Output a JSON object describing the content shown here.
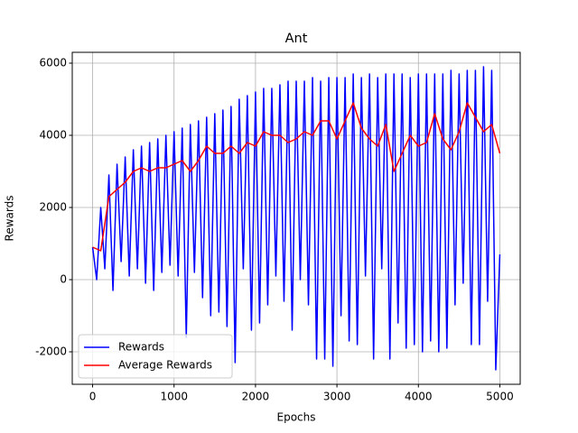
{
  "chart_data": {
    "type": "line",
    "title": "Ant",
    "x_label": "Epochs",
    "y_label": "Rewards",
    "xlim": [
      -250,
      5250
    ],
    "ylim": [
      -2900,
      6300
    ],
    "xticks": [
      0,
      1000,
      2000,
      3000,
      4000,
      5000
    ],
    "yticks": [
      -2000,
      0,
      2000,
      4000,
      6000
    ],
    "grid": true,
    "legend": "lower left",
    "series": [
      {
        "name": "Rewards",
        "color": "#0000ff",
        "x": [
          0,
          50,
          100,
          150,
          200,
          250,
          300,
          350,
          400,
          450,
          500,
          550,
          600,
          650,
          700,
          750,
          800,
          850,
          900,
          950,
          1000,
          1050,
          1100,
          1150,
          1200,
          1250,
          1300,
          1350,
          1400,
          1450,
          1500,
          1550,
          1600,
          1650,
          1700,
          1750,
          1800,
          1850,
          1900,
          1950,
          2000,
          2050,
          2100,
          2150,
          2200,
          2250,
          2300,
          2350,
          2400,
          2450,
          2500,
          2550,
          2600,
          2650,
          2700,
          2750,
          2800,
          2850,
          2900,
          2950,
          3000,
          3050,
          3100,
          3150,
          3200,
          3250,
          3300,
          3350,
          3400,
          3450,
          3500,
          3550,
          3600,
          3650,
          3700,
          3750,
          3800,
          3850,
          3900,
          3950,
          4000,
          4050,
          4100,
          4150,
          4200,
          4250,
          4300,
          4350,
          4400,
          4450,
          4500,
          4550,
          4600,
          4650,
          4700,
          4750,
          4800,
          4850,
          4900,
          4950,
          5000
        ],
        "values": [
          900,
          0,
          2000,
          300,
          2900,
          -300,
          3200,
          500,
          3400,
          100,
          3600,
          300,
          3700,
          -100,
          3800,
          -300,
          3900,
          200,
          4000,
          400,
          4100,
          100,
          4200,
          -1600,
          4300,
          200,
          4400,
          -500,
          4500,
          -1000,
          4600,
          -900,
          4700,
          -1300,
          4800,
          -2300,
          5000,
          300,
          5100,
          -1400,
          5200,
          -1200,
          5300,
          -700,
          5300,
          100,
          5400,
          -600,
          5500,
          -1400,
          5500,
          0,
          5500,
          -700,
          5600,
          -2200,
          5500,
          -2200,
          5600,
          -2400,
          5600,
          -1000,
          5600,
          -1700,
          5700,
          -1800,
          5600,
          100,
          5700,
          -2200,
          5600,
          300,
          5700,
          -2200,
          5700,
          -1200,
          5700,
          -1900,
          5600,
          -1800,
          5700,
          -2000,
          5700,
          -1700,
          5700,
          -2000,
          5700,
          -1900,
          5800,
          -700,
          5700,
          -100,
          5800,
          -1800,
          5800,
          -1800,
          5900,
          -600,
          5800,
          -2500,
          700
        ]
      },
      {
        "name": "Average Rewards",
        "color": "#ff0000",
        "x": [
          0,
          100,
          200,
          300,
          400,
          500,
          600,
          700,
          800,
          900,
          1000,
          1100,
          1200,
          1300,
          1400,
          1500,
          1600,
          1700,
          1800,
          1900,
          2000,
          2100,
          2200,
          2300,
          2400,
          2500,
          2600,
          2700,
          2800,
          2900,
          3000,
          3100,
          3200,
          3300,
          3400,
          3500,
          3600,
          3700,
          3800,
          3900,
          4000,
          4100,
          4200,
          4300,
          4400,
          4500,
          4600,
          4700,
          4800,
          4900,
          5000
        ],
        "values": [
          900,
          800,
          2300,
          2500,
          2700,
          3000,
          3100,
          3000,
          3100,
          3100,
          3200,
          3300,
          3000,
          3300,
          3700,
          3500,
          3500,
          3700,
          3500,
          3800,
          3700,
          4100,
          4000,
          4000,
          3800,
          3900,
          4100,
          4000,
          4400,
          4400,
          3900,
          4400,
          4900,
          4200,
          3900,
          3700,
          4300,
          3000,
          3500,
          4000,
          3700,
          3800,
          4600,
          3900,
          3600,
          4100,
          4900,
          4500,
          4100,
          4300,
          3500
        ]
      }
    ]
  }
}
